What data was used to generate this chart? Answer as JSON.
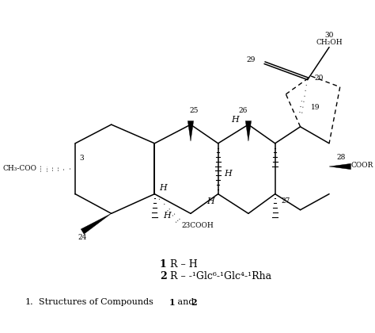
{
  "background_color": "#ffffff",
  "line_color": "#000000",
  "figsize": [
    4.74,
    4.2
  ],
  "dpi": 100,
  "label_30": "30",
  "label_CH2OH": "CH₂OH",
  "label_29": "29",
  "label_20": "20",
  "label_19": "19",
  "label_25": "25",
  "label_26": "26",
  "label_28": "28",
  "label_COOR": "COOR",
  "label_3": "3",
  "label_CH3COO": "CH₃-COO",
  "label_H": "H",
  "label_27": "27",
  "label_24": "24",
  "label_23": "23",
  "label_COOH": "COOH"
}
